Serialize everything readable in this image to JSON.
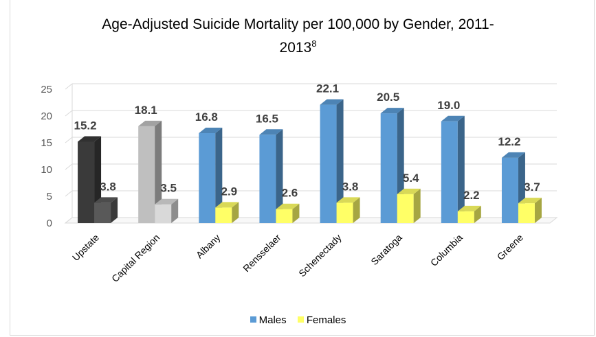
{
  "chart_data": {
    "type": "bar",
    "title_main": "Age-Adjusted Suicide Mortality  per 100,000 by Gender, 2011-",
    "title_line2": "2013",
    "title_sup": "8",
    "categories": [
      "Upstate",
      "Capital Region",
      "Albany",
      "Rensselaer",
      "Schenectady",
      "Saratoga",
      "Columbia",
      "Greene"
    ],
    "series": [
      {
        "name": "Males",
        "values": [
          15.2,
          18.1,
          16.8,
          16.5,
          22.1,
          20.5,
          19.0,
          12.2
        ],
        "labels": [
          "15.2",
          "18.1",
          "16.8",
          "16.5",
          "22.1",
          "20.5",
          "19.0",
          "12.2"
        ]
      },
      {
        "name": "Females",
        "values": [
          3.8,
          3.5,
          2.9,
          2.6,
          3.8,
          5.4,
          2.2,
          3.7
        ],
        "labels": [
          "3.8",
          "3.5",
          "2.9",
          "2.6",
          "3.8",
          "5.4",
          "2.2",
          "3.7"
        ]
      }
    ],
    "yticks": [
      "0",
      "5",
      "10",
      "15",
      "20",
      "25"
    ],
    "ylim": [
      0,
      25
    ],
    "grid": true,
    "legend": "bottom",
    "colors": {
      "Males": "#5b9bd5",
      "Females": "#ffff66",
      "upstate_males": "#3a3a3a",
      "upstate_females": "#595959",
      "capital_males": "#bfbfbf",
      "capital_females": "#d9d9d9"
    }
  }
}
